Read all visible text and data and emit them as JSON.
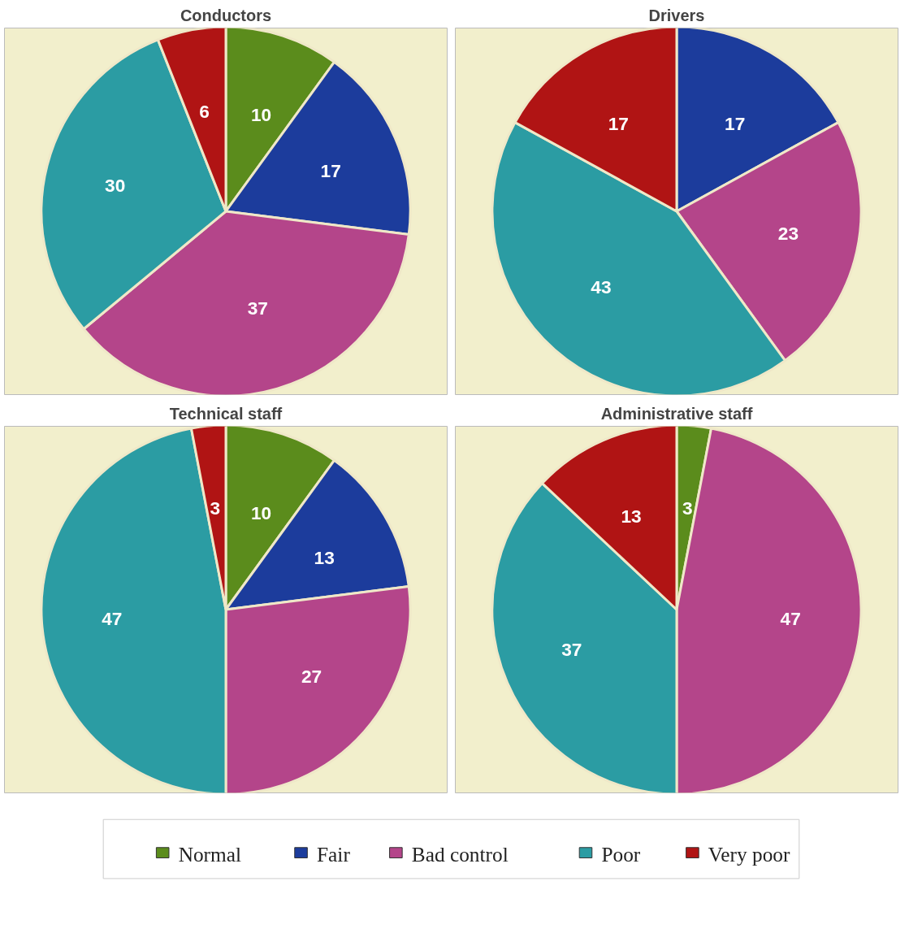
{
  "chart_data": [
    {
      "type": "pie",
      "title": "Conductors",
      "categories": [
        "Normal",
        "Fair",
        "Bad control",
        "Poor",
        "Very poor"
      ],
      "values": [
        10,
        17,
        37,
        30,
        6
      ],
      "colors": [
        "#5b8c1c",
        "#1c3c9c",
        "#b4458a",
        "#2b9ca3",
        "#b01414"
      ],
      "data_labels": true,
      "legend": "bottom"
    },
    {
      "type": "pie",
      "title": "Drivers",
      "categories": [
        null,
        null,
        null,
        null,
        null
      ],
      "values": [
        0,
        17,
        23,
        43,
        17
      ],
      "colors": [
        "#5b8c1c",
        "#1c3c9c",
        "#b4458a",
        "#2b9ca3",
        "#b01414"
      ],
      "data_labels": true
    },
    {
      "type": "pie",
      "title": "Technical staff",
      "categories": [
        null,
        null,
        null,
        null,
        null
      ],
      "values": [
        10,
        13,
        27,
        47,
        3
      ],
      "colors": [
        "#5b8c1c",
        "#1c3c9c",
        "#b4458a",
        "#2b9ca3",
        "#b01414"
      ],
      "data_labels": true
    },
    {
      "type": "pie",
      "title": "Administrative staff",
      "categories": [
        null,
        null,
        null,
        null,
        null
      ],
      "values": [
        3,
        0,
        47,
        37,
        13
      ],
      "colors": [
        "#5b8c1c",
        "#1c3c9c",
        "#b4458a",
        "#2b9ca3",
        "#b01414"
      ],
      "value_labels": [
        "3",
        null,
        "47",
        "37",
        "13"
      ]
    }
  ]
}
